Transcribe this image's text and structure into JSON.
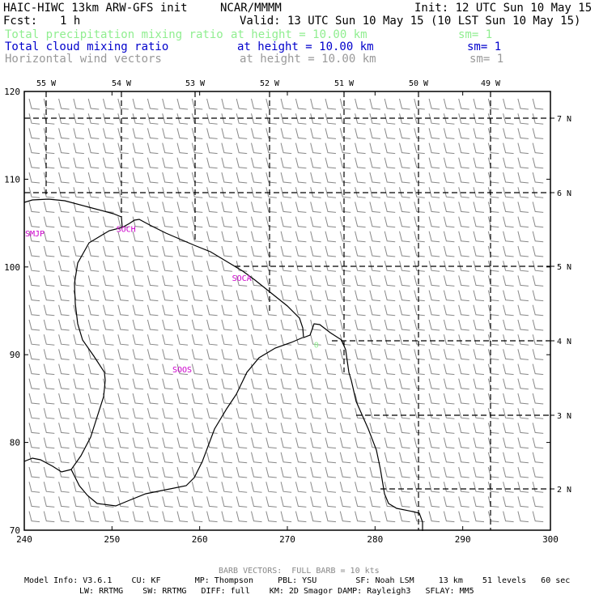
{
  "header": {
    "model": "HAIC-HIWC 13km ARW-GFS init",
    "org": "NCAR/MMMM",
    "init": "Init: 12 UTC Sun 10 May 15",
    "fcst_label": "Fcst:",
    "fcst_value": "1 h",
    "valid": "Valid: 13 UTC Sun 10 May 15 (10 LST Sun 10 May 15)"
  },
  "fields": [
    {
      "name": "Total precipitation mixing ratio",
      "height": "at height = 10.00 km",
      "sm": "sm= 1",
      "color": "#90ee90"
    },
    {
      "name": "Total cloud mixing ratio",
      "height": "at height = 10.00 km",
      "sm": "sm= 1",
      "color": "#0000cc"
    },
    {
      "name": "Horizontal wind vectors",
      "height": "at height = 10.00 km",
      "sm": "sm= 1",
      "color": "#999999"
    }
  ],
  "axes": {
    "x_ticks": [
      "240",
      "250",
      "260",
      "270",
      "280",
      "290",
      "300"
    ],
    "y_ticks": [
      "70",
      "80",
      "90",
      "100",
      "110",
      "120"
    ],
    "lon_labels": [
      "55 W",
      "54 W",
      "53 W",
      "52 W",
      "51 W",
      "50 W",
      "49 W"
    ],
    "lat_labels": [
      "7 N",
      "6 N",
      "5 N",
      "4 N",
      "3 N",
      "2 N"
    ],
    "x_range": [
      240,
      300
    ],
    "y_range": [
      70,
      120
    ]
  },
  "stations": [
    {
      "name": "SMJP",
      "x": 241.2,
      "y": 103.5
    },
    {
      "name": "SOCH",
      "x": 251.6,
      "y": 104.0
    },
    {
      "name": "SOCA",
      "x": 264.8,
      "y": 98.4
    },
    {
      "name": "SOOS",
      "x": 258.0,
      "y": 88.0
    }
  ],
  "precip_marks": [
    {
      "text": "0",
      "x": 273.3,
      "y": 90.8
    }
  ],
  "footer": {
    "barb_note": "BARB VECTORS:  FULL BARB = 10 kts",
    "line1": "Model Info: V3.6.1    CU: KF       MP: Thompson     PBL: YSU        SF: Noah LSM     13 km    51 levels   60 sec",
    "line2": "LW: RRTMG    SW: RRTMG   DIFF: full    KM: 2D Smagor DAMP: Rayleigh3   SFLAY: MM5"
  },
  "colors": {
    "station_label": "#cc00cc",
    "wind_barb": "#888888",
    "coastline": "#000000",
    "grid": "#000000",
    "precip_contour": "#90ee90"
  }
}
